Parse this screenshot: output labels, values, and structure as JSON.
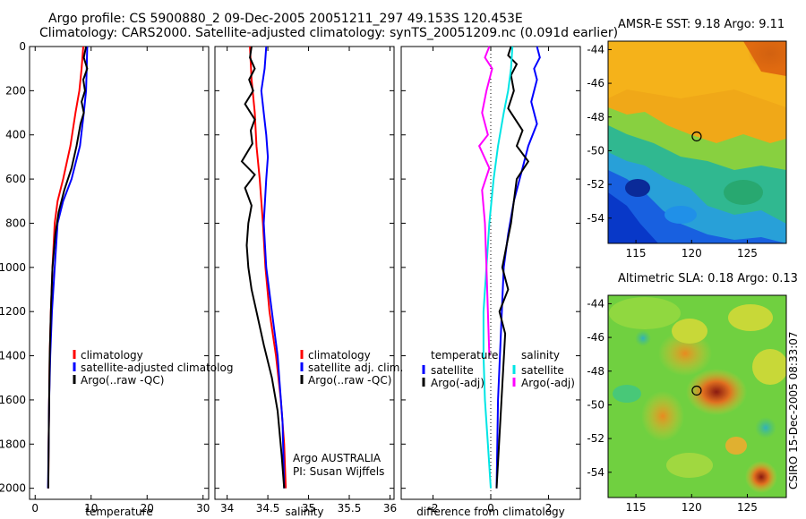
{
  "header": {
    "title_line1": "Argo profile: CS 5900880_2 09-Dec-2005 20051211_297 49.153S 120.453E",
    "title_line2": "Climatology: CARS2000. Satellite-adjusted climatology: synTS_20051209.nc (0.091d earlier)"
  },
  "side_label": "CSIRO 15-Dec-2005 08:33:07",
  "colors": {
    "red": "#ff0000",
    "blue": "#0000ff",
    "black": "#000000",
    "cyan": "#00e5e5",
    "magenta": "#ff00ff"
  },
  "chart_data": [
    {
      "type": "line",
      "name": "temperature",
      "xlabel": "temperature",
      "ylabel": "",
      "xlim": [
        -1,
        31
      ],
      "ylim": [
        2050,
        0
      ],
      "xticks": [
        0,
        10,
        20,
        30
      ],
      "yticks": [
        0,
        200,
        400,
        600,
        800,
        1000,
        1200,
        1400,
        1600,
        1800,
        2000
      ],
      "legend": [
        "climatology",
        "satellite-adjusted climatolog",
        "Argo(..raw -QC)"
      ],
      "series": [
        {
          "name": "climatology",
          "color": "red",
          "x": [
            8.6,
            8.3,
            7.9,
            7.2,
            6.3,
            5.0,
            4.0,
            3.5,
            3.1,
            2.8,
            2.6,
            2.5,
            2.4,
            2.35
          ],
          "y": [
            0,
            100,
            200,
            300,
            450,
            600,
            700,
            800,
            1000,
            1200,
            1400,
            1600,
            1800,
            2000
          ]
        },
        {
          "name": "satellite-adjusted climatology",
          "color": "blue",
          "x": [
            9.3,
            9.2,
            9.1,
            8.7,
            8.0,
            6.5,
            5.0,
            4.0,
            3.5,
            3.0,
            2.7,
            2.5,
            2.4,
            2.3
          ],
          "y": [
            0,
            100,
            200,
            300,
            450,
            600,
            700,
            800,
            1000,
            1200,
            1400,
            1600,
            1800,
            2000
          ]
        },
        {
          "name": "Argo(..raw -QC)",
          "color": "black",
          "x": [
            9.1,
            8.7,
            9.3,
            8.6,
            8.9,
            8.3,
            8.7,
            8.1,
            7.4,
            6.5,
            5.2,
            4.2,
            3.6,
            3.1,
            2.8,
            2.6,
            2.45,
            2.35
          ],
          "y": [
            0,
            50,
            100,
            150,
            200,
            250,
            300,
            350,
            450,
            550,
            650,
            750,
            850,
            1000,
            1200,
            1400,
            1700,
            2000
          ]
        }
      ]
    },
    {
      "type": "line",
      "name": "salinity",
      "xlabel": "salinity",
      "ylabel": "",
      "xlim": [
        33.85,
        36.05
      ],
      "ylim": [
        2050,
        0
      ],
      "xticks": [
        34,
        34.5,
        35,
        35.5,
        36
      ],
      "legend": [
        "climatology",
        "satellite adj. clim.",
        "Argo(..raw -QC)"
      ],
      "annotation_line1": "Argo AUSTRALIA",
      "annotation_line2": "PI: Susan Wijffels",
      "series": [
        {
          "name": "climatology",
          "color": "red",
          "x": [
            34.28,
            34.3,
            34.34,
            34.36,
            34.4,
            34.44,
            34.47,
            34.52,
            34.6,
            34.66,
            34.7,
            34.72
          ],
          "y": [
            0,
            150,
            300,
            450,
            600,
            800,
            1000,
            1200,
            1400,
            1600,
            1800,
            2000
          ]
        },
        {
          "name": "satellite adj. clim.",
          "color": "blue",
          "x": [
            34.48,
            34.46,
            34.42,
            34.45,
            34.48,
            34.5,
            34.48,
            34.45,
            34.48,
            34.55,
            34.62,
            34.68,
            34.7
          ],
          "y": [
            0,
            100,
            200,
            300,
            400,
            500,
            600,
            800,
            1000,
            1200,
            1400,
            1700,
            2000
          ]
        },
        {
          "name": "Argo(..raw -QC)",
          "color": "black",
          "x": [
            34.3,
            34.28,
            34.34,
            34.27,
            34.32,
            34.22,
            34.34,
            34.29,
            34.31,
            34.18,
            34.34,
            34.22,
            34.3,
            34.26,
            34.24,
            34.26,
            34.3,
            34.36,
            34.45,
            34.55,
            34.62,
            34.67,
            34.7
          ],
          "y": [
            0,
            50,
            100,
            150,
            200,
            260,
            330,
            380,
            440,
            520,
            580,
            640,
            720,
            800,
            900,
            1000,
            1100,
            1200,
            1350,
            1500,
            1650,
            1850,
            2000
          ]
        }
      ]
    },
    {
      "type": "line",
      "name": "difference",
      "xlabel": "difference from climatology",
      "ylabel": "",
      "xlim": [
        -3.1,
        3.1
      ],
      "ylim": [
        2050,
        0
      ],
      "xticks": [
        -2,
        0,
        2
      ],
      "legend_temperature_heading": "temperature",
      "legend_salinity_heading": "salinity",
      "legend": [
        "satellite",
        "Argo(-adj)",
        "satellite",
        "Argo(-adj)"
      ],
      "series": [
        {
          "name": "temperature satellite",
          "color": "blue",
          "x": [
            1.6,
            1.7,
            1.5,
            1.6,
            1.4,
            1.6,
            1.3,
            1.1,
            0.8,
            0.6,
            0.45,
            0.35,
            0.25,
            0.2
          ],
          "y": [
            0,
            50,
            100,
            150,
            250,
            350,
            450,
            550,
            700,
            850,
            1000,
            1300,
            1600,
            2000
          ]
        },
        {
          "name": "temperature Argo(-adj)",
          "color": "black",
          "x": [
            0.7,
            0.6,
            0.9,
            0.7,
            0.8,
            0.6,
            1.1,
            0.9,
            1.3,
            0.9,
            0.8,
            0.7,
            0.55,
            0.4,
            0.6,
            0.3,
            0.5,
            0.2
          ],
          "y": [
            0,
            40,
            80,
            130,
            200,
            280,
            380,
            450,
            520,
            600,
            700,
            800,
            900,
            1000,
            1100,
            1200,
            1300,
            2000
          ]
        },
        {
          "name": "salinity satellite",
          "color": "cyan",
          "x": [
            0.75,
            0.7,
            0.6,
            0.45,
            0.25,
            0.1,
            -0.05,
            -0.15,
            -0.25,
            -0.25,
            -0.2,
            -0.1,
            0
          ],
          "y": [
            0,
            100,
            200,
            300,
            450,
            600,
            800,
            1000,
            1200,
            1400,
            1600,
            1800,
            2000
          ]
        },
        {
          "name": "salinity Argo(-adj)",
          "color": "magenta",
          "x": [
            -0.05,
            -0.2,
            0.05,
            -0.15,
            -0.3,
            -0.1,
            -0.4,
            -0.05,
            -0.3,
            -0.2,
            -0.15,
            -0.1,
            -0.05
          ],
          "y": [
            0,
            50,
            100,
            200,
            300,
            400,
            450,
            550,
            650,
            800,
            1000,
            1200,
            1400
          ]
        }
      ]
    },
    {
      "type": "heatmap",
      "name": "sst-map",
      "title": "AMSR-E SST: 9.18 Argo: 9.11",
      "xlim": [
        112.5,
        128.5
      ],
      "ylim": [
        -55.5,
        -43.5
      ],
      "xticks": [
        115,
        120,
        125
      ],
      "yticks": [
        -44,
        -46,
        -48,
        -50,
        -52,
        -54
      ],
      "marker": {
        "lon": 120.453,
        "lat": -49.153
      }
    },
    {
      "type": "heatmap",
      "name": "sla-map",
      "title": "Altimetric SLA: 0.18 Argo: 0.13",
      "xlim": [
        112.5,
        128.5
      ],
      "ylim": [
        -55.5,
        -43.5
      ],
      "xticks": [
        115,
        120,
        125
      ],
      "yticks": [
        -44,
        -46,
        -48,
        -50,
        -52,
        -54
      ],
      "marker": {
        "lon": 120.453,
        "lat": -49.153
      }
    }
  ]
}
